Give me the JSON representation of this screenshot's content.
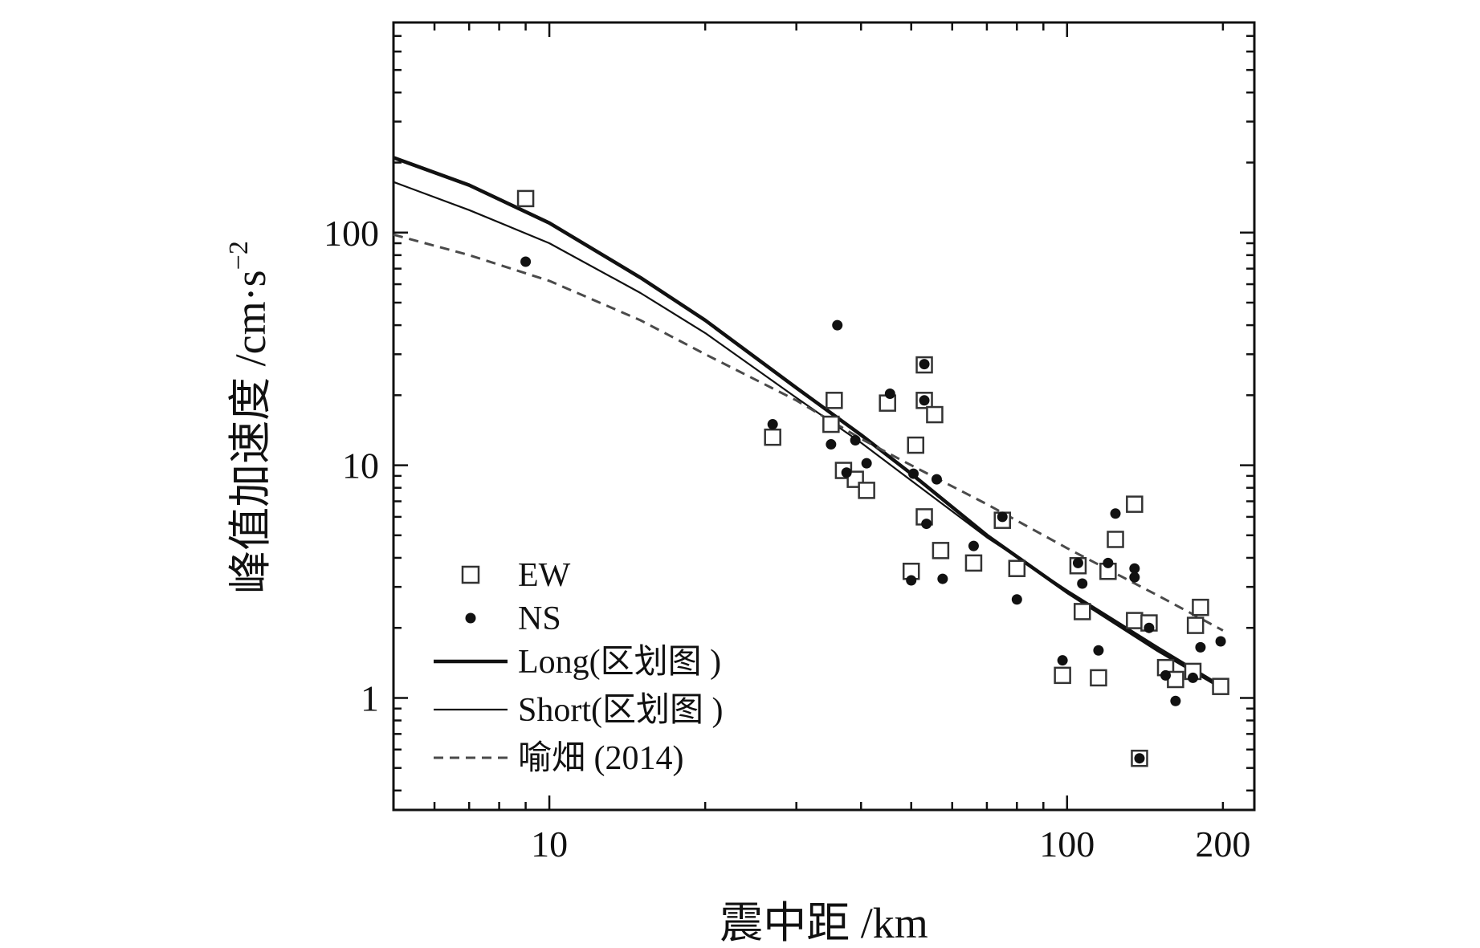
{
  "chart_data": {
    "type": "scatter",
    "title": "",
    "xlabel": "震中距 /km",
    "ylabel": {
      "main": "峰值加速度 /cm·s",
      "superscript": "−2"
    },
    "x_scale": "log",
    "y_scale": "log",
    "xlim": [
      5,
      230
    ],
    "ylim": [
      0.33,
      800
    ],
    "x_ticks": [
      {
        "value": 10,
        "label": "10"
      },
      {
        "value": 100,
        "label": "100"
      },
      {
        "value": 200,
        "label": "200"
      }
    ],
    "y_ticks": [
      {
        "value": 1,
        "label": "1"
      },
      {
        "value": 10,
        "label": "10"
      },
      {
        "value": 100,
        "label": "100"
      }
    ],
    "legend_position": "bottom-left",
    "colors": {
      "ink": "#111111",
      "dashed": "#4a4a4a"
    },
    "series": [
      {
        "name": "EW",
        "kind": "scatter",
        "marker": "open-square",
        "points": [
          [
            9,
            140
          ],
          [
            27,
            13.2
          ],
          [
            35,
            15
          ],
          [
            35.5,
            19
          ],
          [
            37,
            9.5
          ],
          [
            39,
            8.7
          ],
          [
            41,
            7.8
          ],
          [
            45,
            18.5
          ],
          [
            50,
            3.5
          ],
          [
            51,
            12.2
          ],
          [
            53,
            6
          ],
          [
            53,
            19
          ],
          [
            53,
            27
          ],
          [
            55.5,
            16.5
          ],
          [
            57,
            4.3
          ],
          [
            66,
            3.8
          ],
          [
            75,
            5.8
          ],
          [
            80,
            3.6
          ],
          [
            98,
            1.25
          ],
          [
            105,
            3.7
          ],
          [
            107,
            2.35
          ],
          [
            115,
            1.22
          ],
          [
            120,
            3.5
          ],
          [
            124,
            4.8
          ],
          [
            135,
            6.8
          ],
          [
            135,
            2.15
          ],
          [
            138,
            0.55
          ],
          [
            144,
            2.1
          ],
          [
            155,
            1.35
          ],
          [
            162,
            1.2
          ],
          [
            175,
            1.3
          ],
          [
            177,
            2.05
          ],
          [
            181,
            2.45
          ],
          [
            198,
            1.12
          ]
        ]
      },
      {
        "name": "NS",
        "kind": "scatter",
        "marker": "filled-circle",
        "points": [
          [
            9,
            75
          ],
          [
            27,
            15
          ],
          [
            35,
            12.3
          ],
          [
            36,
            40
          ],
          [
            37.5,
            9.3
          ],
          [
            39,
            12.8
          ],
          [
            41,
            10.2
          ],
          [
            45.5,
            20.3
          ],
          [
            50,
            3.2
          ],
          [
            50.5,
            9.2
          ],
          [
            53,
            27.2
          ],
          [
            53,
            19
          ],
          [
            53.5,
            5.6
          ],
          [
            56,
            8.7
          ],
          [
            57.5,
            3.25
          ],
          [
            66,
            4.5
          ],
          [
            75,
            6
          ],
          [
            80,
            2.65
          ],
          [
            98,
            1.45
          ],
          [
            105,
            3.8
          ],
          [
            107,
            3.1
          ],
          [
            115,
            1.6
          ],
          [
            120,
            3.8
          ],
          [
            124,
            6.2
          ],
          [
            135,
            3.6
          ],
          [
            135,
            3.3
          ],
          [
            138,
            0.55
          ],
          [
            144,
            2
          ],
          [
            155,
            1.25
          ],
          [
            162,
            0.97
          ],
          [
            175,
            1.22
          ],
          [
            181,
            1.65
          ],
          [
            198,
            1.75
          ]
        ]
      },
      {
        "name": "Long(区划图 )",
        "kind": "line",
        "style": "solid-thick",
        "points": [
          [
            5,
            210
          ],
          [
            7,
            160
          ],
          [
            10,
            110
          ],
          [
            15,
            64
          ],
          [
            20,
            42
          ],
          [
            30,
            21.5
          ],
          [
            40,
            13.5
          ],
          [
            50,
            9.2
          ],
          [
            70,
            5
          ],
          [
            100,
            2.85
          ],
          [
            150,
            1.6
          ],
          [
            200,
            1.1
          ]
        ]
      },
      {
        "name": "Short(区划图 )",
        "kind": "line",
        "style": "solid-thin",
        "points": [
          [
            5,
            165
          ],
          [
            7,
            125
          ],
          [
            10,
            90
          ],
          [
            15,
            55
          ],
          [
            20,
            37
          ],
          [
            30,
            19.5
          ],
          [
            40,
            12.5
          ],
          [
            50,
            8.6
          ],
          [
            70,
            4.9
          ],
          [
            100,
            2.9
          ],
          [
            150,
            1.65
          ],
          [
            200,
            1.12
          ]
        ]
      },
      {
        "name": "喻畑 (2014)",
        "kind": "line",
        "style": "dashed",
        "points": [
          [
            5,
            98
          ],
          [
            7,
            80
          ],
          [
            10,
            62
          ],
          [
            15,
            42
          ],
          [
            20,
            30
          ],
          [
            30,
            19
          ],
          [
            40,
            13
          ],
          [
            50,
            10
          ],
          [
            70,
            6.8
          ],
          [
            100,
            4.4
          ],
          [
            150,
            2.75
          ],
          [
            200,
            1.95
          ]
        ]
      }
    ]
  }
}
